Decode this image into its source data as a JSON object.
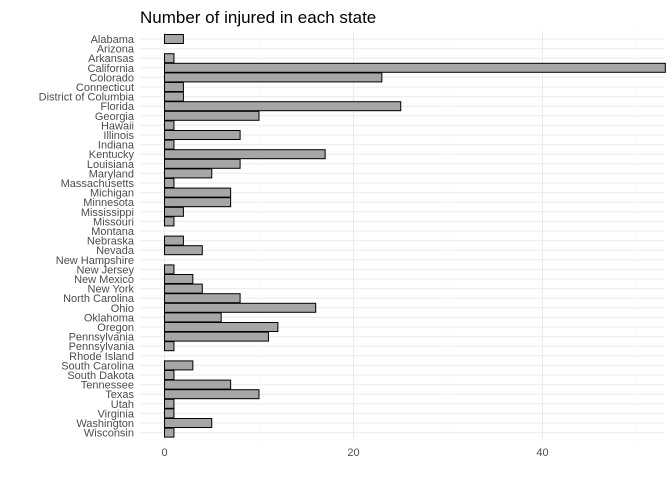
{
  "colors": {
    "bar_fill": "#a6a6a6",
    "bar_stroke": "#000000",
    "grid": "#ebebeb",
    "background": "#ffffff"
  },
  "chart_data": {
    "type": "bar",
    "orientation": "horizontal",
    "title": "Number of injured in each state",
    "xlabel": "",
    "ylabel": "",
    "xlim": [
      0,
      55
    ],
    "x_ticks": [
      0,
      20,
      40
    ],
    "grid": true,
    "categories": [
      "Alabama",
      "Arizona",
      "Arkansas",
      "California",
      "Colorado",
      "Connecticut",
      "District of Columbia",
      "Florida",
      "Georgia",
      "Hawaii",
      "Illinois",
      "Indiana",
      "Kentucky",
      "Louisiana",
      "Maryland",
      "Massachusetts",
      "Michigan",
      "Minnesota",
      "Mississippi",
      "Missouri",
      "Montana",
      "Nebraska",
      "Nevada",
      "New Hampshire",
      "New Jersey",
      "New Mexico",
      "New York",
      "North Carolina",
      "Ohio",
      "Oklahoma",
      "Oregon",
      "Pennsylvania",
      "Pennsylvania ",
      "Rhode Island",
      "South Carolina",
      "South Dakota",
      "Tennessee",
      "Texas",
      "Utah",
      "Virginia",
      "Washington",
      "Wisconsin"
    ],
    "values": [
      2,
      0,
      1,
      53,
      23,
      2,
      2,
      25,
      10,
      1,
      8,
      1,
      17,
      8,
      5,
      1,
      7,
      7,
      2,
      1,
      0,
      2,
      4,
      0,
      1,
      3,
      4,
      8,
      16,
      6,
      12,
      11,
      1,
      0,
      3,
      1,
      7,
      10,
      1,
      1,
      5,
      1
    ]
  }
}
